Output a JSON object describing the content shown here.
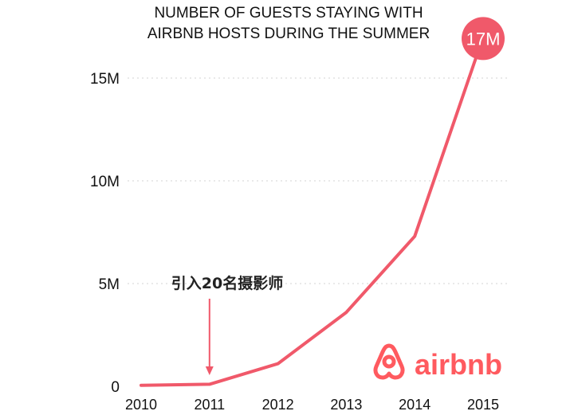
{
  "chart_data": {
    "type": "line",
    "title_lines": [
      "NUMBER OF GUESTS STAYING WITH",
      "AIRBNB HOSTS DURING THE SUMMER"
    ],
    "x": [
      2010,
      2011,
      2012,
      2013,
      2014,
      2015
    ],
    "x_tick_labels": [
      "2010",
      "2011",
      "2012",
      "2013",
      "2014",
      "2015"
    ],
    "y_ticks": [
      0,
      5,
      10,
      15
    ],
    "y_tick_labels": [
      "0",
      "5M",
      "10M",
      "15M"
    ],
    "ylim": [
      0,
      17
    ],
    "series": [
      {
        "values": [
          0.05,
          0.1,
          1.1,
          3.6,
          7.3,
          17
        ]
      }
    ],
    "endpoint_label": "17M",
    "annotation": {
      "text": "引入20名摄影师",
      "x": 2011
    },
    "grid": "horizontal dotted",
    "colors": {
      "line": "#f0596a",
      "badge": "#f0596a",
      "grid": "#e2e2e2",
      "logo": "#ff5a5f"
    }
  },
  "logo": {
    "text": "airbnb",
    "icon": "airbnb-belo-icon"
  }
}
